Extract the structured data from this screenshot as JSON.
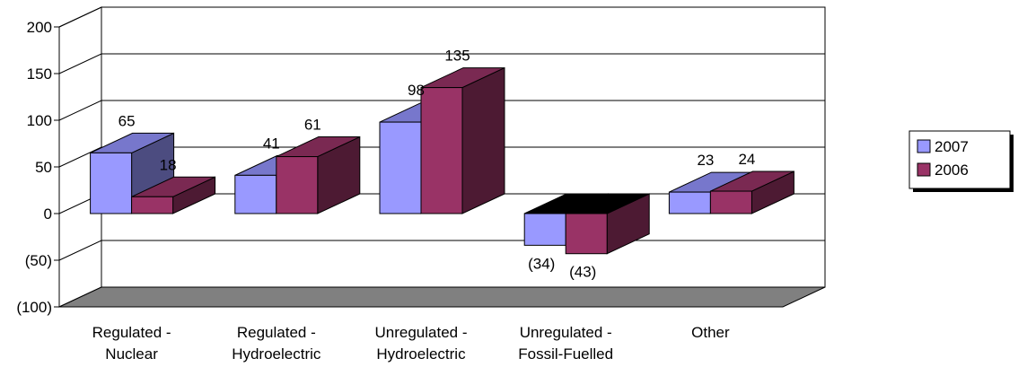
{
  "chart_data": {
    "type": "bar",
    "categories": [
      [
        "Regulated -",
        "Nuclear"
      ],
      [
        "Regulated -",
        "Hydroelectric"
      ],
      [
        "Unregulated -",
        "Hydroelectric"
      ],
      [
        "Unregulated -",
        "Fossil-Fuelled"
      ],
      [
        "Other"
      ]
    ],
    "series": [
      {
        "name": "2007",
        "values": [
          65,
          41,
          98,
          -34,
          23
        ],
        "labels": [
          "65",
          "41",
          "98",
          "(34)",
          "23"
        ]
      },
      {
        "name": "2006",
        "values": [
          18,
          61,
          135,
          -43,
          24
        ],
        "labels": [
          "18",
          "61",
          "135",
          "(43)",
          "24"
        ]
      }
    ],
    "ylim": [
      -100,
      200
    ],
    "yticks": [
      200,
      150,
      100,
      50,
      0,
      -50,
      -100
    ],
    "ytick_labels": [
      "200",
      "150",
      "100",
      "50",
      "0",
      "(50)",
      "(100)"
    ],
    "title": "",
    "xlabel": "",
    "ylabel": "",
    "grid": true,
    "legend_position": "right",
    "three_d": true
  },
  "colors": {
    "series_2007_front": "#9999FF",
    "series_2007_top": "#7777CC",
    "series_2007_side": "#4C4C80",
    "series_2006_front": "#993366",
    "series_2006_top": "#7A2952",
    "series_2006_side": "#4D1A33",
    "floor": "#808080"
  }
}
